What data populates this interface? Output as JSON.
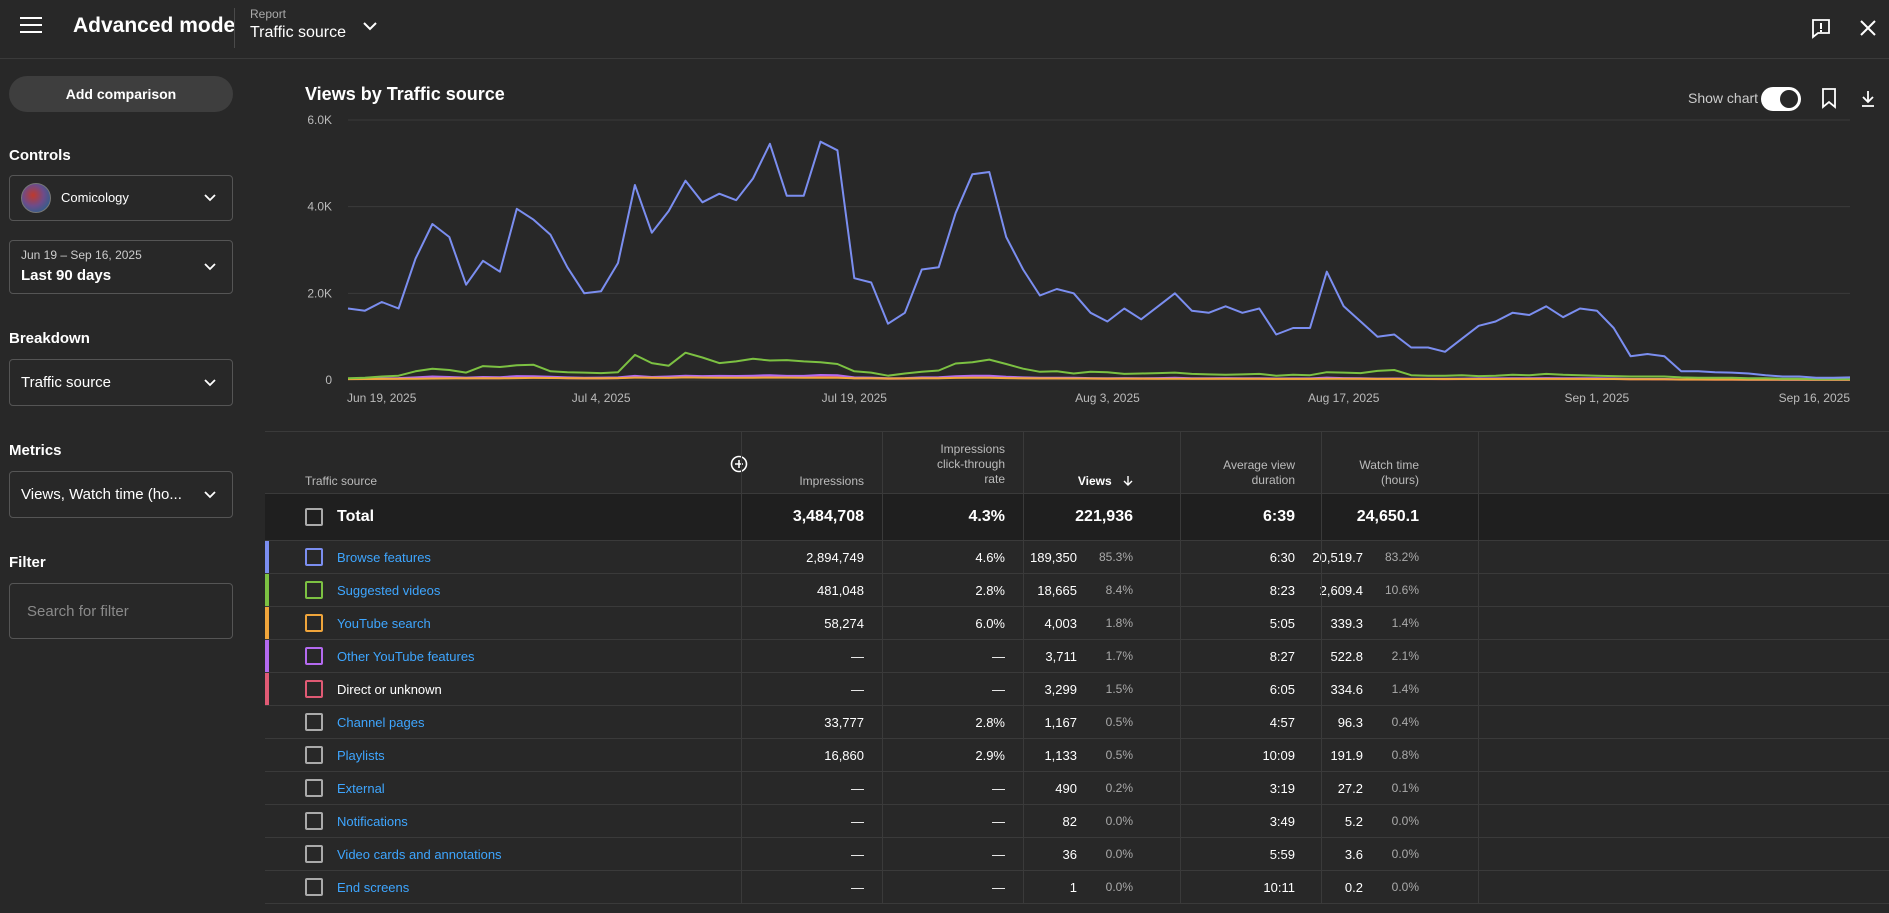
{
  "header": {
    "title": "Advanced mode",
    "report_label": "Report",
    "report_value": "Traffic source",
    "icons": [
      "menu-icon",
      "chevron-down-icon",
      "feedback-icon",
      "close-icon"
    ]
  },
  "sidebar": {
    "add_comparison": "Add comparison",
    "controls_title": "Controls",
    "channel": "Comicology",
    "date_range": "Jun 19 – Sep 16, 2025",
    "date_label": "Last 90 days",
    "breakdown_title": "Breakdown",
    "breakdown_value": "Traffic source",
    "metrics_title": "Metrics",
    "metrics_value": "Views, Watch time (ho...",
    "filter_title": "Filter",
    "filter_placeholder": "Search for filter"
  },
  "chart_header": {
    "title": "Views by Traffic source",
    "show_chart_label": "Show chart",
    "show_chart_on": true
  },
  "chart_data": {
    "type": "line",
    "y_ticks": [
      "0",
      "2.0K",
      "4.0K",
      "6.0K"
    ],
    "ylim": [
      0,
      6000
    ],
    "x_ticks": [
      {
        "label": "Jun 19, 2025",
        "day": 0
      },
      {
        "label": "Jul 4, 2025",
        "day": 15
      },
      {
        "label": "Jul 19, 2025",
        "day": 30
      },
      {
        "label": "Aug 3, 2025",
        "day": 45
      },
      {
        "label": "Aug 17, 2025",
        "day": 59
      },
      {
        "label": "Sep 1, 2025",
        "day": 74
      },
      {
        "label": "Sep 16, 2025",
        "day": 89
      }
    ],
    "series": [
      {
        "color": "#7b8ef0",
        "values": [
          1650,
          1600,
          1800,
          1650,
          2800,
          3600,
          3300,
          2200,
          2750,
          2500,
          3950,
          3700,
          3350,
          2600,
          2000,
          2050,
          2700,
          4500,
          3400,
          3900,
          4600,
          4100,
          4300,
          4150,
          4650,
          5450,
          4250,
          4250,
          5500,
          5300,
          2350,
          2250,
          1300,
          1550,
          2550,
          2600,
          3850,
          4750,
          4800,
          3300,
          2550,
          1950,
          2100,
          2000,
          1550,
          1350,
          1650,
          1400,
          1700,
          2000,
          1600,
          1550,
          1700,
          1550,
          1650,
          1050,
          1200,
          1200,
          2500,
          1700,
          1350,
          1000,
          1050,
          750,
          750,
          650,
          950,
          1250,
          1350,
          1550,
          1500,
          1700,
          1450,
          1650,
          1600,
          1200,
          550,
          600,
          550,
          200,
          200,
          180,
          170,
          150,
          110,
          80,
          80,
          50,
          50,
          60
        ]
      },
      {
        "color": "#7cc142",
        "values": [
          40,
          50,
          80,
          100,
          200,
          260,
          230,
          170,
          320,
          300,
          340,
          350,
          200,
          180,
          170,
          160,
          180,
          580,
          390,
          330,
          630,
          520,
          390,
          430,
          490,
          450,
          460,
          430,
          410,
          370,
          200,
          170,
          100,
          150,
          190,
          220,
          380,
          410,
          470,
          370,
          260,
          190,
          200,
          150,
          190,
          180,
          140,
          150,
          160,
          170,
          140,
          130,
          120,
          130,
          140,
          100,
          120,
          110,
          180,
          170,
          160,
          210,
          230,
          110,
          100,
          100,
          110,
          90,
          100,
          120,
          110,
          140,
          120,
          110,
          100,
          90,
          80,
          80,
          80,
          60,
          50,
          50,
          50,
          40,
          40,
          30,
          30,
          20,
          20,
          20
        ]
      },
      {
        "color": "#f0a53b",
        "values": [
          20,
          22,
          25,
          28,
          30,
          35,
          38,
          40,
          42,
          40,
          45,
          48,
          46,
          44,
          42,
          40,
          45,
          55,
          50,
          48,
          60,
          55,
          52,
          50,
          54,
          56,
          55,
          53,
          52,
          50,
          42,
          40,
          35,
          38,
          40,
          42,
          48,
          52,
          50,
          45,
          40,
          38,
          36,
          35,
          34,
          33,
          32,
          32,
          31,
          30,
          30,
          29,
          28,
          28,
          28,
          26,
          25,
          26,
          30,
          28,
          27,
          26,
          26,
          24,
          24,
          23,
          23,
          24,
          24,
          25,
          25,
          26,
          25,
          25,
          24,
          22,
          18,
          18,
          17,
          12,
          12,
          11,
          11,
          10,
          10,
          9,
          9,
          8,
          8,
          8
        ]
      },
      {
        "color": "#b46af0",
        "values": [
          30,
          32,
          40,
          45,
          60,
          80,
          70,
          55,
          70,
          65,
          90,
          85,
          75,
          60,
          50,
          55,
          60,
          95,
          70,
          80,
          100,
          90,
          95,
          92,
          100,
          110,
          95,
          95,
          115,
          110,
          60,
          55,
          40,
          45,
          60,
          62,
          85,
          100,
          100,
          75,
          60,
          50,
          52,
          50,
          45,
          40,
          44,
          40,
          45,
          50,
          42,
          40,
          44,
          40,
          42,
          35,
          38,
          38,
          55,
          44,
          40,
          33,
          34,
          30,
          30,
          28,
          32,
          36,
          38,
          40,
          40,
          44,
          40,
          42,
          42,
          35,
          22,
          23,
          22,
          12,
          12,
          11,
          11,
          10,
          9,
          8,
          8,
          6,
          6,
          6
        ]
      },
      {
        "color": "#e05a74",
        "values": [
          25,
          26,
          30,
          28,
          40,
          55,
          50,
          38,
          45,
          42,
          60,
          56,
          52,
          42,
          36,
          36,
          45,
          68,
          54,
          58,
          70,
          63,
          66,
          64,
          70,
          78,
          66,
          66,
          80,
          76,
          42,
          40,
          28,
          32,
          44,
          45,
          62,
          72,
          72,
          52,
          42,
          36,
          38,
          36,
          32,
          30,
          32,
          30,
          32,
          36,
          30,
          30,
          32,
          30,
          31,
          25,
          27,
          27,
          40,
          32,
          29,
          24,
          25,
          22,
          22,
          20,
          23,
          26,
          27,
          29,
          29,
          32,
          29,
          31,
          30,
          25,
          16,
          16,
          15,
          9,
          9,
          8,
          8,
          7,
          7,
          6,
          6,
          5,
          5,
          5
        ]
      }
    ]
  },
  "table": {
    "headers": {
      "source": "Traffic source",
      "impressions": "Impressions",
      "ctr_line1": "Impressions",
      "ctr_line2": "click-through",
      "ctr_line3": "rate",
      "views": "Views",
      "avd_line1": "Average view",
      "avd_line2": "duration",
      "wt_line1": "Watch time",
      "wt_line2": "(hours)"
    },
    "total": {
      "label": "Total",
      "impressions": "3,484,708",
      "ctr": "4.3%",
      "views": "221,936",
      "avd": "6:39",
      "watch_time": "24,650.1"
    },
    "rows": [
      {
        "name": "Browse features",
        "link": true,
        "color": "#7b8ef0",
        "impressions": "2,894,749",
        "ctr": "4.6%",
        "views": "189,350",
        "views_pct": "85.3%",
        "avd": "6:30",
        "watch_time": "20,519.7",
        "wt_pct": "83.2%"
      },
      {
        "name": "Suggested videos",
        "link": true,
        "color": "#7cc142",
        "impressions": "481,048",
        "ctr": "2.8%",
        "views": "18,665",
        "views_pct": "8.4%",
        "avd": "8:23",
        "watch_time": "2,609.4",
        "wt_pct": "10.6%"
      },
      {
        "name": "YouTube search",
        "link": true,
        "color": "#f0a53b",
        "impressions": "58,274",
        "ctr": "6.0%",
        "views": "4,003",
        "views_pct": "1.8%",
        "avd": "5:05",
        "watch_time": "339.3",
        "wt_pct": "1.4%"
      },
      {
        "name": "Other YouTube features",
        "link": true,
        "color": "#b46af0",
        "impressions": "—",
        "ctr": "—",
        "views": "3,711",
        "views_pct": "1.7%",
        "avd": "8:27",
        "watch_time": "522.8",
        "wt_pct": "2.1%"
      },
      {
        "name": "Direct or unknown",
        "link": false,
        "color": "#e05a74",
        "impressions": "—",
        "ctr": "—",
        "views": "3,299",
        "views_pct": "1.5%",
        "avd": "6:05",
        "watch_time": "334.6",
        "wt_pct": "1.4%"
      },
      {
        "name": "Channel pages",
        "link": true,
        "color": "",
        "impressions": "33,777",
        "ctr": "2.8%",
        "views": "1,167",
        "views_pct": "0.5%",
        "avd": "4:57",
        "watch_time": "96.3",
        "wt_pct": "0.4%"
      },
      {
        "name": "Playlists",
        "link": true,
        "color": "",
        "impressions": "16,860",
        "ctr": "2.9%",
        "views": "1,133",
        "views_pct": "0.5%",
        "avd": "10:09",
        "watch_time": "191.9",
        "wt_pct": "0.8%"
      },
      {
        "name": "External",
        "link": true,
        "color": "",
        "impressions": "—",
        "ctr": "—",
        "views": "490",
        "views_pct": "0.2%",
        "avd": "3:19",
        "watch_time": "27.2",
        "wt_pct": "0.1%"
      },
      {
        "name": "Notifications",
        "link": true,
        "color": "",
        "impressions": "—",
        "ctr": "—",
        "views": "82",
        "views_pct": "0.0%",
        "avd": "3:49",
        "watch_time": "5.2",
        "wt_pct": "0.0%"
      },
      {
        "name": "Video cards and annotations",
        "link": true,
        "color": "",
        "impressions": "—",
        "ctr": "—",
        "views": "36",
        "views_pct": "0.0%",
        "avd": "5:59",
        "watch_time": "3.6",
        "wt_pct": "0.0%"
      },
      {
        "name": "End screens",
        "link": true,
        "color": "",
        "impressions": "—",
        "ctr": "—",
        "views": "1",
        "views_pct": "0.0%",
        "avd": "10:11",
        "watch_time": "0.2",
        "wt_pct": "0.0%"
      }
    ]
  }
}
